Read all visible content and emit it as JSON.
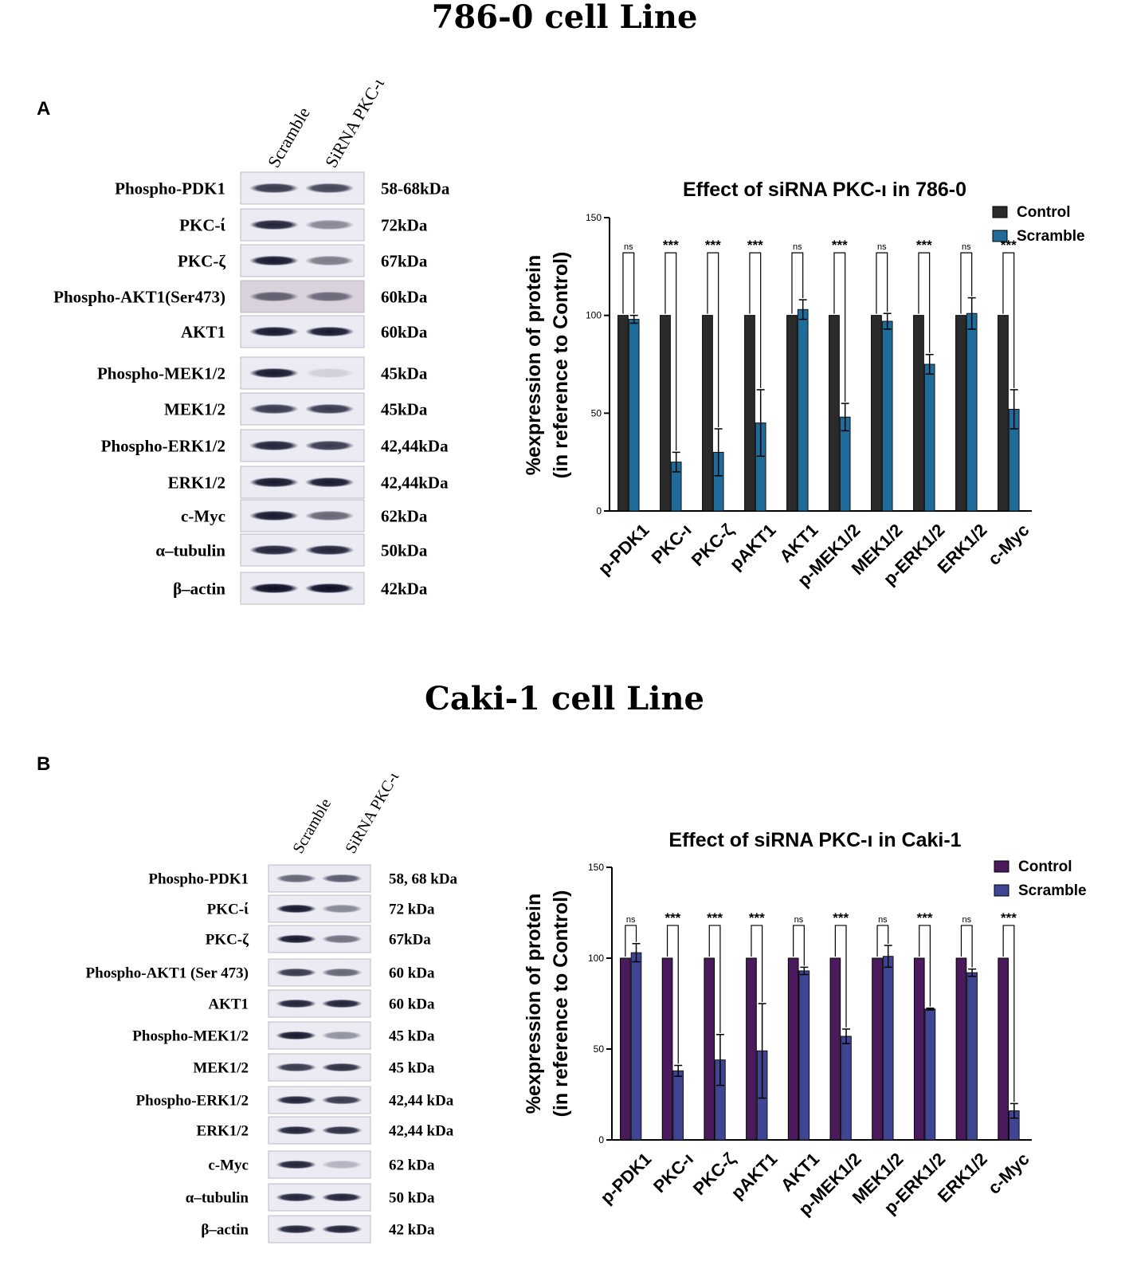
{
  "figure": {
    "panel_a": {
      "title": "786-0 cell Line",
      "letter": "A",
      "lanes": [
        "Scramble",
        "SiRNA PKC-ι"
      ],
      "blot": {
        "proteins": [
          "Phospho-PDK1",
          "PKC-ί",
          "PKC-ζ",
          "Phospho-AKT1(Ser473)",
          "AKT1",
          "Phospho-MEK1/2",
          "MEK1/2",
          "Phospho-ERK1/2",
          "ERK1/2",
          "c-Myc",
          "α–tubulin",
          "β–actin"
        ],
        "weights": [
          "58-68kDa",
          "72kDa",
          "67kDa",
          "60kDa",
          "60kDa",
          "45kDa",
          "45kDa",
          "42,44kDa",
          "42,44kDa",
          "62kDa",
          "50kDa",
          "42kDa"
        ]
      }
    },
    "panel_b": {
      "title": "Caki-1 cell Line",
      "letter": "B",
      "lanes": [
        "Scramble",
        "SiRNA PKC-ι"
      ],
      "blot": {
        "proteins": [
          "Phospho-PDK1",
          "PKC-ί",
          "PKC-ζ",
          "Phospho-AKT1 (Ser 473)",
          "AKT1",
          "Phospho-MEK1/2",
          "MEK1/2",
          "Phospho-ERK1/2",
          "ERK1/2",
          "c-Myc",
          "α–tubulin",
          "β–actin"
        ],
        "weights": [
          "58, 68 kDa",
          "72 kDa",
          "67kDa",
          "60 kDa",
          "60 kDa",
          "45 kDa",
          "45 kDa",
          "42,44 kDa",
          "42,44 kDa",
          "62 kDa",
          "50 kDa",
          "42 kDa"
        ]
      }
    }
  },
  "chart_data": [
    {
      "type": "bar",
      "title": "Effect of siRNA PKC-ı in 786-0",
      "ylabel_line1": "%expression of protein",
      "ylabel_line2": "(in reference to Control)",
      "xlabel": "",
      "ylim": [
        0,
        150
      ],
      "yticks": [
        0,
        50,
        100,
        150
      ],
      "categories": [
        "p-PDK1",
        "PKC-ı",
        "PKC-ζ",
        "pAKT1",
        "AKT1",
        "p-MEK1/2",
        "MEK1/2",
        "p-ERK1/2",
        "ERK1/2",
        "c-Myc"
      ],
      "series": [
        {
          "name": "Control",
          "color": "#2b2b2b",
          "values": [
            100,
            100,
            100,
            100,
            100,
            100,
            100,
            100,
            100,
            100
          ],
          "errors": [
            0,
            0,
            0,
            0,
            0,
            0,
            0,
            0,
            0,
            0
          ]
        },
        {
          "name": "Scramble",
          "color": "#1f6b99",
          "values": [
            98,
            25,
            30,
            45,
            103,
            48,
            97,
            75,
            101,
            52
          ],
          "errors": [
            2,
            5,
            12,
            17,
            5,
            7,
            4,
            5,
            8,
            10
          ]
        }
      ],
      "significance": [
        "ns",
        "***",
        "***",
        "***",
        "ns",
        "***",
        "ns",
        "***",
        "ns",
        "***"
      ],
      "legend_position": "top-right"
    },
    {
      "type": "bar",
      "title": "Effect of siRNA PKC-ı in Caki-1",
      "ylabel_line1": "%expression of protein",
      "ylabel_line2": "(in reference to Control)",
      "xlabel": "",
      "ylim": [
        0,
        150
      ],
      "yticks": [
        0,
        50,
        100,
        150
      ],
      "categories": [
        "p-PDK1",
        "PKC-ı",
        "PKC-ζ",
        "pAKT1",
        "AKT1",
        "p-MEK1/2",
        "MEK1/2",
        "p-ERK1/2",
        "ERK1/2",
        "c-Myc"
      ],
      "series": [
        {
          "name": "Control",
          "color": "#4a1a5c",
          "values": [
            100,
            100,
            100,
            100,
            100,
            100,
            100,
            100,
            100,
            100
          ],
          "errors": [
            0,
            0,
            0,
            0,
            0,
            0,
            0,
            0,
            0,
            0
          ]
        },
        {
          "name": "Scramble",
          "color": "#3f4592",
          "values": [
            103,
            38,
            44,
            49,
            93,
            57,
            101,
            72,
            92,
            16
          ],
          "errors": [
            5,
            3,
            14,
            26,
            2,
            4,
            6,
            0.5,
            2,
            4
          ]
        }
      ],
      "significance": [
        "ns",
        "***",
        "***",
        "***",
        "ns",
        "***",
        "ns",
        "***",
        "ns",
        "***"
      ],
      "legend_position": "top-right"
    }
  ]
}
